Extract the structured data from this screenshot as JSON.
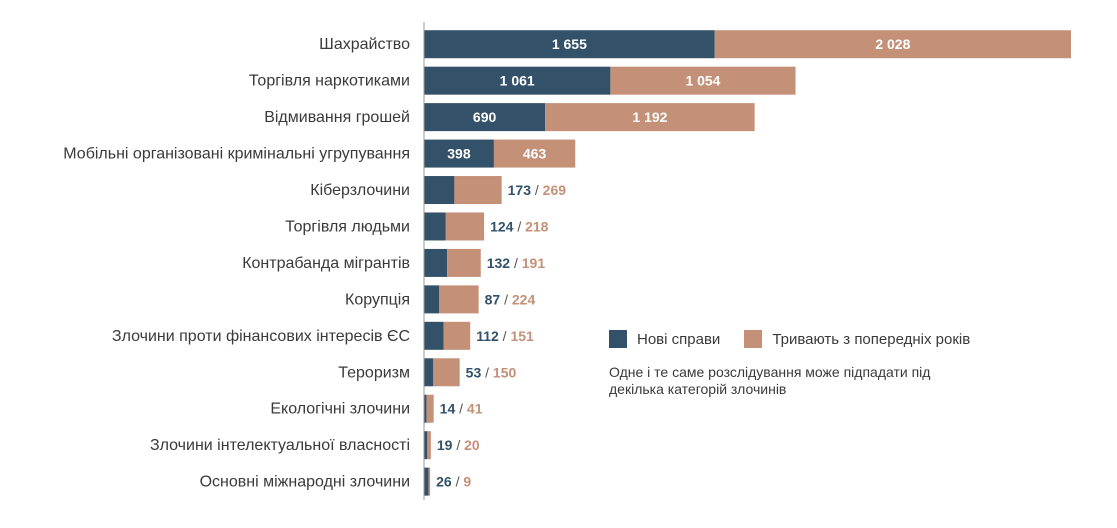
{
  "chart_data": {
    "type": "bar",
    "orientation": "horizontal",
    "stacked": true,
    "categories": [
      "Шахрайство",
      "Торгівля наркотиками",
      "Відмивання грошей",
      "Мобільні організовані кримінальні угрупування",
      "Кіберзлочини",
      "Торгівля людьми",
      "Контрабанда мігрантів",
      "Корупція",
      "Злочини проти фінансових інтересів ЄС",
      "Тероризм",
      "Екологічні злочини",
      "Злочини інтелектуальної власності",
      "Основні міжнародні злочини"
    ],
    "series": [
      {
        "name": "Нові справи",
        "color": "#33526a",
        "values": [
          1655,
          1061,
          690,
          398,
          173,
          124,
          132,
          87,
          112,
          53,
          14,
          19,
          26
        ],
        "labels": [
          "1 655",
          "1 061",
          "690",
          "398",
          "173",
          "124",
          "132",
          "87",
          "112",
          "53",
          "14",
          "19",
          "26"
        ]
      },
      {
        "name": "Тривають з попередніх років",
        "color": "#c49178",
        "values": [
          2028,
          1054,
          1192,
          463,
          269,
          218,
          191,
          224,
          151,
          150,
          41,
          20,
          9
        ],
        "labels": [
          "2 028",
          "1 054",
          "1 192",
          "463",
          "269",
          "218",
          "191",
          "224",
          "151",
          "150",
          "41",
          "20",
          "9"
        ]
      }
    ],
    "label_inside_count": 4,
    "separator": "/",
    "xlim": [
      0,
      3683
    ],
    "legend_position": "right",
    "note": "Одне і те саме розслідування може підпадати під декілька категорій злочинів"
  },
  "colors": {
    "axis": "#999999",
    "label_text": "#3a3a3a",
    "separator": "#555555"
  }
}
